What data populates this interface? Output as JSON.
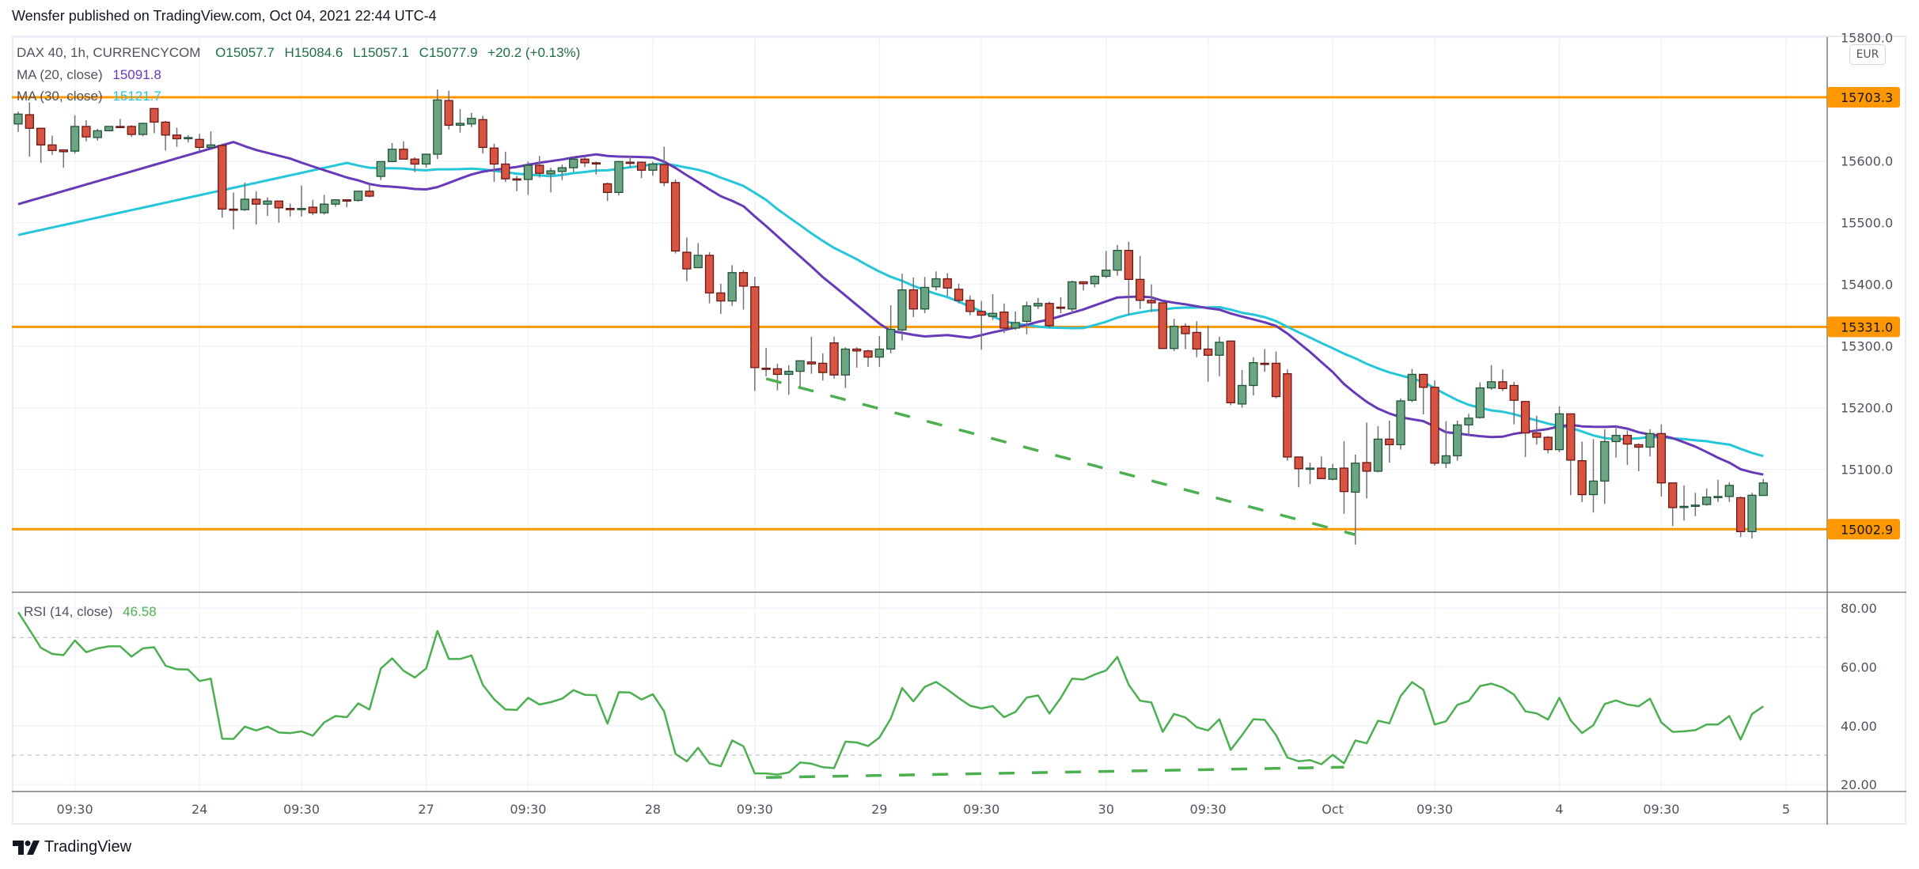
{
  "publish_line": "Wensfer published on TradingView.com, Oct 04, 2021 22:44 UTC-4",
  "header": {
    "symbol": "DAX 40, 1h, CURRENCYCOM",
    "ohlc": [
      {
        "label": "O",
        "value": "15057.7"
      },
      {
        "label": "H",
        "value": "15084.6"
      },
      {
        "label": "L",
        "value": "15057.1"
      },
      {
        "label": "C",
        "value": "15077.9"
      }
    ],
    "change": "+20.2 (+0.13%)"
  },
  "indicators": {
    "ma20": {
      "label": "MA (20, close)",
      "value": "15091.8",
      "period": 20,
      "color": "#673ab7",
      "first_visible_value": 15530
    },
    "ma30": {
      "label": "MA (30, close)",
      "value": "15121.7",
      "period": 30,
      "color": "#26c6da",
      "first_visible_value": 15480
    },
    "rsi": {
      "label": "RSI (14, close)",
      "value": "46.58",
      "color": "#4caf50"
    }
  },
  "price_axis": {
    "currency": "EUR",
    "ticks": [
      "15100.0",
      "15200.0",
      "15300.0",
      "15400.0",
      "15500.0",
      "15600.0",
      "15800.0"
    ],
    "level_badges": [
      "15703.3",
      "15331.0",
      "15002.9"
    ]
  },
  "rsi_axis": {
    "ticks": [
      "80.00",
      "60.00",
      "40.00",
      "20.00"
    ],
    "bands": [
      70,
      30
    ]
  },
  "time_axis": [
    {
      "label": "09:30",
      "bar": 5
    },
    {
      "label": "24",
      "bar": 16
    },
    {
      "label": "09:30",
      "bar": 25
    },
    {
      "label": "27",
      "bar": 36
    },
    {
      "label": "09:30",
      "bar": 45
    },
    {
      "label": "28",
      "bar": 56
    },
    {
      "label": "09:30",
      "bar": 65
    },
    {
      "label": "29",
      "bar": 76
    },
    {
      "label": "09:30",
      "bar": 85
    },
    {
      "label": "30",
      "bar": 96
    },
    {
      "label": "09:30",
      "bar": 105
    },
    {
      "label": "Oct",
      "bar": 116
    },
    {
      "label": "09:30",
      "bar": 125
    },
    {
      "label": "4",
      "bar": 136
    },
    {
      "label": "09:30",
      "bar": 145
    },
    {
      "label": "5",
      "bar": 156
    }
  ],
  "colors": {
    "up": "#6ba583",
    "up_border": "#225437",
    "down": "#d75442",
    "down_border": "#6b1713",
    "level": "#ff9800",
    "trendline": "#4caf50"
  },
  "chart_data": {
    "type": "candlestick",
    "price_range": [
      14903.6,
      15820
    ],
    "rsi_range": [
      17.3,
      85.4
    ],
    "grid": true,
    "horizontal_levels": [
      15703.3,
      15331.0,
      15002.9
    ],
    "price_trendline": {
      "from": {
        "bar": 66,
        "price": 15247
      },
      "to": {
        "bar": 118,
        "price": 14994
      }
    },
    "rsi_trendline": {
      "from": {
        "bar": 66,
        "rsi": 22.4
      },
      "to": {
        "bar": 117,
        "rsi": 25.9
      }
    },
    "ohlc": [
      [
        15660,
        15680,
        15647,
        15676
      ],
      [
        15675,
        15695,
        15607,
        15653
      ],
      [
        15653,
        15653,
        15597,
        15626
      ],
      [
        15626,
        15641,
        15610,
        15617
      ],
      [
        15618,
        15618,
        15589,
        15615
      ],
      [
        15616,
        15674,
        15612,
        15656
      ],
      [
        15656,
        15666,
        15632,
        15639
      ],
      [
        15638,
        15652,
        15633,
        15649
      ],
      [
        15649,
        15656,
        15649,
        15656
      ],
      [
        15656,
        15668,
        15654,
        15655
      ],
      [
        15656,
        15658,
        15639,
        15643
      ],
      [
        15643,
        15662,
        15640,
        15661
      ],
      [
        15685,
        15685,
        15645,
        15663
      ],
      [
        15663,
        15665,
        15617,
        15642
      ],
      [
        15642,
        15654,
        15623,
        15636
      ],
      [
        15636,
        15642,
        15630,
        15638
      ],
      [
        15635,
        15644,
        15617,
        15622
      ],
      [
        15622,
        15648,
        15621,
        15626
      ],
      [
        15625,
        15628,
        15508,
        15522
      ],
      [
        15522,
        15549,
        15489,
        15521
      ],
      [
        15521,
        15565,
        15519,
        15538
      ],
      [
        15538,
        15551,
        15497,
        15530
      ],
      [
        15530,
        15541,
        15511,
        15535
      ],
      [
        15535,
        15535,
        15500,
        15524
      ],
      [
        15523,
        15531,
        15510,
        15522
      ],
      [
        15522,
        15560,
        15510,
        15523
      ],
      [
        15525,
        15537,
        15512,
        15516
      ],
      [
        15516,
        15545,
        15513,
        15530
      ],
      [
        15530,
        15537,
        15526,
        15537
      ],
      [
        15537,
        15537,
        15525,
        15535
      ],
      [
        15536,
        15552,
        15534,
        15551
      ],
      [
        15551,
        15562,
        15541,
        15543
      ],
      [
        15575,
        15599,
        15569,
        15599
      ],
      [
        15599,
        15629,
        15599,
        15619
      ],
      [
        15619,
        15632,
        15603,
        15603
      ],
      [
        15603,
        15606,
        15582,
        15595
      ],
      [
        15595,
        15612,
        15589,
        15611
      ],
      [
        15611,
        15716,
        15603,
        15699
      ],
      [
        15698,
        15714,
        15651,
        15658
      ],
      [
        15658,
        15684,
        15646,
        15661
      ],
      [
        15660,
        15678,
        15655,
        15669
      ],
      [
        15667,
        15673,
        15612,
        15622
      ],
      [
        15621,
        15628,
        15566,
        15595
      ],
      [
        15595,
        15615,
        15566,
        15571
      ],
      [
        15571,
        15576,
        15551,
        15570
      ],
      [
        15570,
        15599,
        15545,
        15593
      ],
      [
        15593,
        15608,
        15573,
        15580
      ],
      [
        15579,
        15589,
        15549,
        15584
      ],
      [
        15583,
        15594,
        15569,
        15589
      ],
      [
        15589,
        15606,
        15582,
        15603
      ],
      [
        15603,
        15606,
        15590,
        15597
      ],
      [
        15597,
        15599,
        15578,
        15596
      ],
      [
        15563,
        15565,
        15535,
        15549
      ],
      [
        15549,
        15599,
        15544,
        15599
      ],
      [
        15598,
        15608,
        15589,
        15597
      ],
      [
        15598,
        15599,
        15572,
        15585
      ],
      [
        15585,
        15599,
        15576,
        15595
      ],
      [
        15594,
        15623,
        15559,
        15565
      ],
      [
        15565,
        15570,
        15450,
        15454
      ],
      [
        15452,
        15476,
        15405,
        15425
      ],
      [
        15427,
        15467,
        15427,
        15447
      ],
      [
        15447,
        15452,
        15369,
        15386
      ],
      [
        15386,
        15401,
        15352,
        15373
      ],
      [
        15373,
        15431,
        15365,
        15419
      ],
      [
        15419,
        15423,
        15359,
        15397
      ],
      [
        15396,
        15412,
        15227,
        15265
      ],
      [
        15264,
        15297,
        15251,
        15263
      ],
      [
        15263,
        15271,
        15228,
        15254
      ],
      [
        15254,
        15269,
        15221,
        15259
      ],
      [
        15259,
        15276,
        15230,
        15276
      ],
      [
        15274,
        15315,
        15255,
        15271
      ],
      [
        15272,
        15288,
        15244,
        15257
      ],
      [
        15305,
        15315,
        15247,
        15253
      ],
      [
        15253,
        15298,
        15232,
        15295
      ],
      [
        15295,
        15298,
        15265,
        15292
      ],
      [
        15292,
        15294,
        15266,
        15282
      ],
      [
        15282,
        15316,
        15266,
        15295
      ],
      [
        15295,
        15366,
        15288,
        15327
      ],
      [
        15326,
        15417,
        15309,
        15391
      ],
      [
        15391,
        15411,
        15347,
        15360
      ],
      [
        15360,
        15412,
        15353,
        15395
      ],
      [
        15396,
        15421,
        15390,
        15409
      ],
      [
        15409,
        15418,
        15381,
        15394
      ],
      [
        15392,
        15401,
        15369,
        15374
      ],
      [
        15374,
        15382,
        15350,
        15356
      ],
      [
        15356,
        15373,
        15294,
        15350
      ],
      [
        15348,
        15384,
        15342,
        15353
      ],
      [
        15355,
        15369,
        15321,
        15329
      ],
      [
        15329,
        15356,
        15326,
        15338
      ],
      [
        15340,
        15372,
        15319,
        15365
      ],
      [
        15365,
        15378,
        15360,
        15369
      ],
      [
        15369,
        15372,
        15329,
        15333
      ],
      [
        15363,
        15379,
        15353,
        15362
      ],
      [
        15360,
        15406,
        15353,
        15404
      ],
      [
        15404,
        15405,
        15390,
        15401
      ],
      [
        15401,
        15415,
        15395,
        15413
      ],
      [
        15413,
        15454,
        15410,
        15423
      ],
      [
        15423,
        15464,
        15414,
        15455
      ],
      [
        15455,
        15469,
        15351,
        15408
      ],
      [
        15408,
        15446,
        15360,
        15374
      ],
      [
        15374,
        15400,
        15355,
        15370
      ],
      [
        15370,
        15370,
        15295,
        15296
      ],
      [
        15296,
        15344,
        15292,
        15332
      ],
      [
        15332,
        15337,
        15295,
        15320
      ],
      [
        15322,
        15340,
        15282,
        15295
      ],
      [
        15295,
        15333,
        15242,
        15285
      ],
      [
        15285,
        15315,
        15251,
        15306
      ],
      [
        15308,
        15308,
        15204,
        15208
      ],
      [
        15206,
        15261,
        15200,
        15236
      ],
      [
        15236,
        15282,
        15220,
        15273
      ],
      [
        15272,
        15295,
        15258,
        15271
      ],
      [
        15272,
        15291,
        15215,
        15218
      ],
      [
        15255,
        15262,
        15114,
        15120
      ],
      [
        15120,
        15120,
        15071,
        15101
      ],
      [
        15101,
        15111,
        15076,
        15102
      ],
      [
        15102,
        15121,
        15085,
        15085
      ],
      [
        15084,
        15109,
        15082,
        15101
      ],
      [
        15102,
        15146,
        15028,
        15064
      ],
      [
        15063,
        15124,
        14978,
        15110
      ],
      [
        15111,
        15176,
        15053,
        15097
      ],
      [
        15097,
        15170,
        15095,
        15149
      ],
      [
        15149,
        15179,
        15111,
        15140
      ],
      [
        15140,
        15215,
        15132,
        15211
      ],
      [
        15212,
        15263,
        15209,
        15254
      ],
      [
        15254,
        15255,
        15189,
        15233
      ],
      [
        15233,
        15244,
        15106,
        15110
      ],
      [
        15110,
        15178,
        15102,
        15122
      ],
      [
        15122,
        15179,
        15114,
        15172
      ],
      [
        15172,
        15190,
        15155,
        15183
      ],
      [
        15184,
        15241,
        15182,
        15232
      ],
      [
        15232,
        15269,
        15229,
        15242
      ],
      [
        15242,
        15262,
        15227,
        15231
      ],
      [
        15236,
        15242,
        15173,
        15212
      ],
      [
        15210,
        15211,
        15120,
        15159
      ],
      [
        15159,
        15187,
        15140,
        15152
      ],
      [
        15152,
        15154,
        15126,
        15132
      ],
      [
        15132,
        15202,
        15128,
        15190
      ],
      [
        15190,
        15190,
        15058,
        15115
      ],
      [
        15114,
        15145,
        15047,
        15059
      ],
      [
        15059,
        15149,
        15030,
        15081
      ],
      [
        15081,
        15165,
        15044,
        15145
      ],
      [
        15145,
        15170,
        15119,
        15155
      ],
      [
        15155,
        15163,
        15107,
        15141
      ],
      [
        15140,
        15142,
        15097,
        15136
      ],
      [
        15136,
        15165,
        15121,
        15158
      ],
      [
        15158,
        15173,
        15056,
        15078
      ],
      [
        15078,
        15078,
        15008,
        15038
      ],
      [
        15039,
        15074,
        15017,
        15040
      ],
      [
        15040,
        15062,
        15024,
        15042
      ],
      [
        15043,
        15069,
        15041,
        15055
      ],
      [
        15055,
        15083,
        15047,
        15056
      ],
      [
        15056,
        15079,
        15047,
        15074
      ],
      [
        15054,
        15056,
        14990,
        14999
      ],
      [
        14999,
        15062,
        14988,
        15058
      ],
      [
        15057.7,
        15084.6,
        15057.1,
        15077.9
      ]
    ],
    "rsi": [
      78.6,
      72.6,
      66.5,
      64.4,
      64.0,
      69.0,
      65.0,
      66.3,
      67.0,
      67.0,
      63.5,
      66.3,
      66.7,
      60.4,
      59.2,
      59.1,
      55.2,
      56.0,
      35.6,
      35.5,
      39.7,
      38.4,
      39.7,
      37.7,
      37.5,
      38.1,
      36.6,
      41.1,
      43.3,
      42.9,
      47.6,
      45.5,
      59.4,
      62.9,
      58.7,
      56.4,
      59.5,
      72.2,
      62.7,
      62.7,
      63.9,
      53.9,
      49.0,
      45.5,
      45.4,
      49.5,
      47.2,
      48.0,
      49.2,
      52.1,
      50.5,
      50.4,
      40.7,
      51.4,
      51.3,
      48.9,
      50.7,
      44.9,
      30.4,
      27.9,
      32.5,
      27.2,
      26.2,
      35.0,
      33.0,
      23.8,
      23.8,
      23.4,
      24.1,
      27.5,
      27.1,
      25.9,
      25.6,
      34.6,
      34.3,
      33.1,
      36.0,
      42.4,
      52.8,
      48.3,
      53.2,
      54.9,
      52.3,
      49.4,
      46.8,
      45.9,
      46.7,
      42.9,
      44.7,
      49.6,
      50.3,
      44.1,
      49.4,
      56.0,
      55.7,
      57.4,
      58.8,
      63.4,
      53.9,
      48.5,
      47.9,
      37.9,
      44.0,
      42.8,
      39.5,
      38.4,
      42.2,
      31.8,
      36.8,
      42.2,
      42.0,
      36.8,
      29.2,
      27.9,
      28.3,
      26.9,
      30.1,
      27.2,
      35.0,
      34.0,
      41.7,
      40.8,
      50.1,
      54.8,
      52.2,
      40.4,
      41.5,
      47.1,
      48.4,
      53.5,
      54.3,
      53.0,
      50.6,
      44.9,
      44.2,
      42.1,
      49.5,
      41.8,
      37.5,
      40.2,
      47.4,
      48.6,
      47.2,
      46.6,
      49.2,
      41.1,
      37.9,
      38.1,
      38.5,
      40.4,
      40.4,
      43.3,
      35.3,
      44.0,
      46.58
    ]
  },
  "footer": {
    "brand": "TradingView"
  }
}
